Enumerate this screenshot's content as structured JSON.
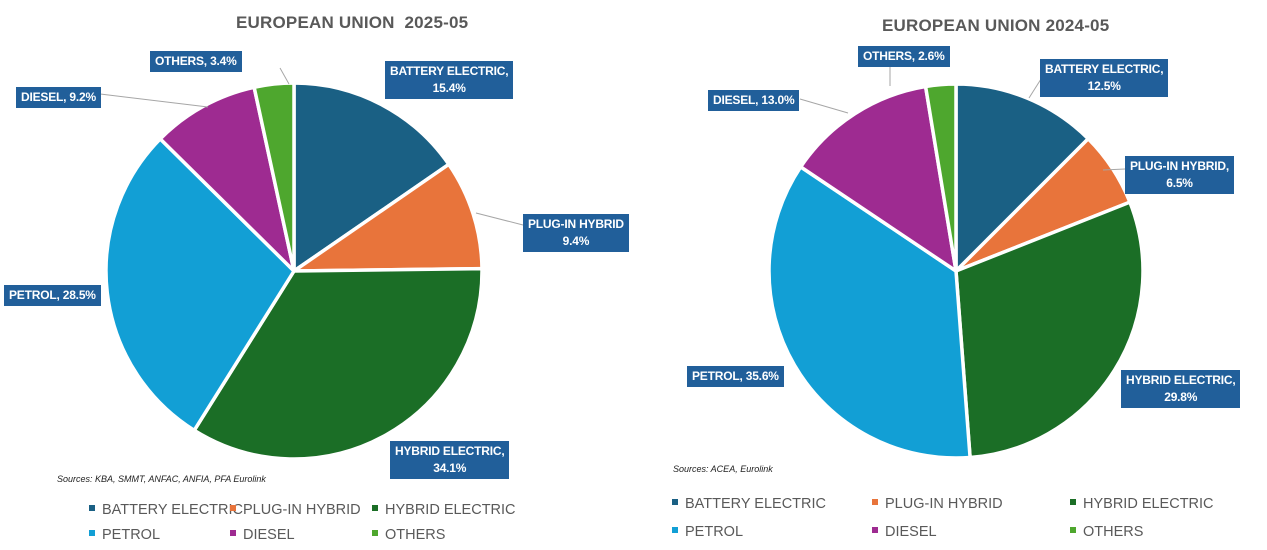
{
  "chart_data": [
    {
      "type": "pie",
      "title": "EUROPEAN UNION  2025-05",
      "source": "Sources: KBA, SMMT, ANFAC, ANFIA, PFA Eurolink",
      "categories": [
        "BATTERY ELECTRIC",
        "PLUG-IN HYBRID",
        "HYBRID ELECTRIC",
        "PETROL",
        "DIESEL",
        "OTHERS"
      ],
      "values": [
        15.4,
        9.4,
        34.1,
        28.5,
        9.2,
        3.4
      ],
      "unit": "%",
      "data_labels": [
        "BATTERY ELECTRIC,\n15.4%",
        "PLUG-IN HYBRID\n9.4%",
        "HYBRID ELECTRIC,\n34.1%",
        "PETROL, 28.5%",
        "DIESEL, 9.2%",
        "OTHERS, 3.4%"
      ],
      "start_angle": "12 o'clock, clockwise",
      "legend": "bottom"
    },
    {
      "type": "pie",
      "title": "EUROPEAN UNION 2024-05",
      "source": "Sources: ACEA, Eurolink",
      "categories": [
        "BATTERY ELECTRIC",
        "PLUG-IN HYBRID",
        "HYBRID ELECTRIC",
        "PETROL",
        "DIESEL",
        "OTHERS"
      ],
      "values": [
        12.5,
        6.5,
        29.8,
        35.6,
        13.0,
        2.6
      ],
      "unit": "%",
      "data_labels": [
        "BATTERY ELECTRIC,\n12.5%",
        "PLUG-IN HYBRID,\n6.5%",
        "HYBRID ELECTRIC,\n29.8%",
        "PETROL, 35.6%",
        "DIESEL, 13.0%",
        "OTHERS, 2.6%"
      ],
      "start_angle": "12 o'clock, clockwise",
      "legend": "bottom"
    }
  ],
  "colors": {
    "BATTERY ELECTRIC": "#1a6084",
    "PLUG-IN HYBRID": "#e8743b",
    "HYBRID ELECTRIC": "#1b6e26",
    "PETROL": "#129fd5",
    "DIESEL": "#9e2b91",
    "OTHERS": "#4ea72e",
    "label_box": "#215f9a",
    "title": "#595959"
  }
}
